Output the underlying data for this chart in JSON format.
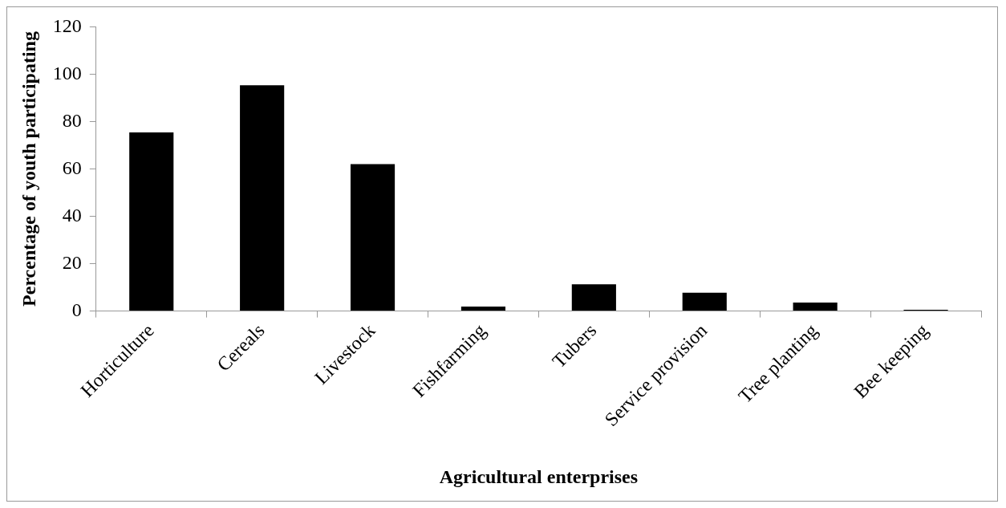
{
  "chart_data": {
    "type": "bar",
    "xlabel": "Agricultural enterprises",
    "ylabel": "Percentage of youth participating",
    "categories": [
      "Horticulture",
      "Cereals",
      "Livestock",
      "Fishfarming",
      "Tubers",
      "Service provision",
      "Tree planting",
      "Bee keeping"
    ],
    "values": [
      75.4,
      95.3,
      62,
      1.9,
      11.3,
      7.7,
      3.6,
      0.5
    ],
    "color": "#000000",
    "ylim": [
      0,
      120
    ],
    "yticks": [
      0,
      20,
      40,
      60,
      80,
      100,
      120
    ],
    "grid": false,
    "legend": false
  }
}
